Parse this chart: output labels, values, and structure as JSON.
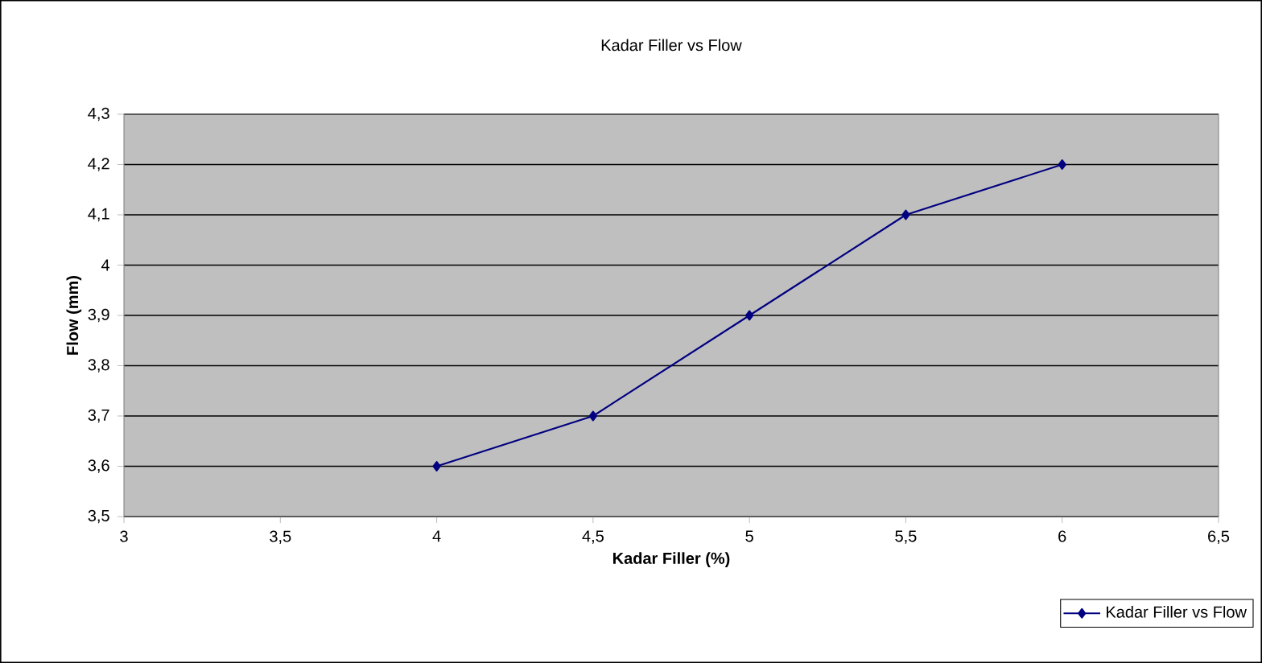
{
  "chart_data": {
    "type": "line",
    "title": "Kadar Filler vs Flow",
    "xlabel": "Kadar Filler (%)",
    "ylabel": "Flow (mm)",
    "x": [
      4,
      4.5,
      5,
      5.5,
      6
    ],
    "series": [
      {
        "name": "Kadar Filler vs Flow",
        "color": "#000080",
        "values": [
          3.6,
          3.7,
          3.9,
          4.1,
          4.2
        ]
      }
    ],
    "xlim": [
      3,
      6.5
    ],
    "xticks": [
      3,
      {
        "value": 3.5,
        "label": "3,5"
      },
      4,
      {
        "value": 4.5,
        "label": "4,5"
      },
      5,
      {
        "value": 5.5,
        "label": "5,5"
      },
      6,
      {
        "value": 6.5,
        "label": "6,5"
      }
    ],
    "ylim": [
      3.5,
      4.3
    ],
    "yticks": [
      {
        "value": 3.5,
        "label": "3,5"
      },
      {
        "value": 3.6,
        "label": "3,6"
      },
      {
        "value": 3.7,
        "label": "3,7"
      },
      {
        "value": 3.8,
        "label": "3,8"
      },
      {
        "value": 3.9,
        "label": "3,9"
      },
      4,
      {
        "value": 4.1,
        "label": "4,1"
      },
      {
        "value": 4.2,
        "label": "4,2"
      },
      {
        "value": 4.3,
        "label": "4,3"
      }
    ],
    "grid": "y",
    "legend": "bottom right",
    "marker": "diamond",
    "line_style": "solid"
  }
}
